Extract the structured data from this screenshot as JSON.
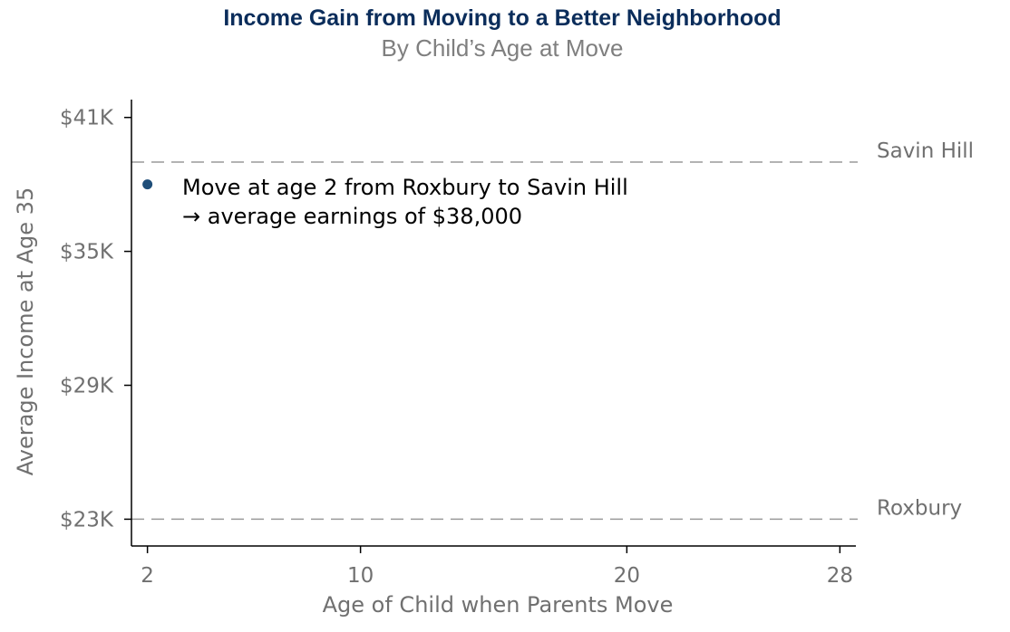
{
  "colors": {
    "title": "#0b2d5b",
    "subtitle": "#7f7f7f",
    "axis": "#000000",
    "tick_label": "#707070",
    "ref_line": "#9a9a9a",
    "point": "#1f4e79",
    "annotation": "#000000"
  },
  "chart_data": {
    "type": "scatter",
    "title": "Income Gain from Moving to a Better Neighborhood",
    "subtitle": "By Child’s Age at Move",
    "xlabel": "Age of Child when Parents Move",
    "ylabel": "Average Income at Age 35",
    "xlim": [
      1.4,
      28.6
    ],
    "ylim": [
      21.8,
      41.8
    ],
    "x_ticks": [
      2,
      10,
      20,
      28
    ],
    "x_tick_labels": [
      "2",
      "10",
      "20",
      "28"
    ],
    "y_ticks": [
      23,
      29,
      35,
      41
    ],
    "y_tick_labels": [
      "$23K",
      "$29K",
      "$35K",
      "$41K"
    ],
    "grid": false,
    "series": [
      {
        "points": [
          {
            "x": 2,
            "y": 38.0
          }
        ]
      }
    ],
    "reference_lines": [
      {
        "label": "Savin Hill",
        "y": 39.0
      },
      {
        "label": "Roxbury",
        "y": 23.0
      }
    ],
    "annotation": {
      "line1": "Move at age 2 from Roxbury to Savin Hill",
      "line2": "→ average earnings of $38,000"
    }
  }
}
